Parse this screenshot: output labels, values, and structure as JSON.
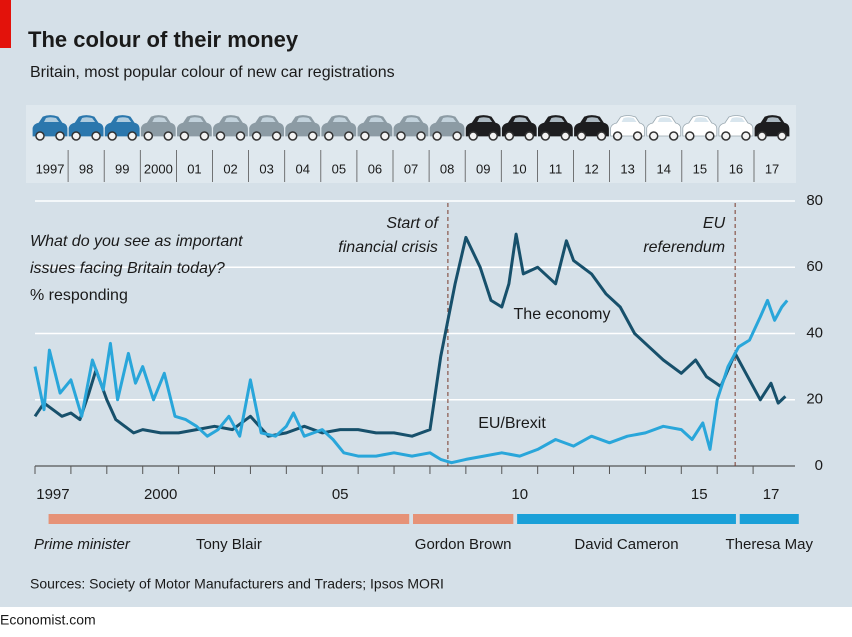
{
  "title": "The colour of their money",
  "subtitle": "Britain, most popular colour of new car registrations",
  "cars": {
    "years": [
      "1997",
      "98",
      "99",
      "2000",
      "01",
      "02",
      "03",
      "04",
      "05",
      "06",
      "07",
      "08",
      "09",
      "10",
      "11",
      "12",
      "13",
      "14",
      "15",
      "16",
      "17"
    ],
    "colors": [
      "#2b77ad",
      "#2b77ad",
      "#2b77ad",
      "#8c9ba4",
      "#8c9ba4",
      "#8c9ba4",
      "#8c9ba4",
      "#8c9ba4",
      "#8c9ba4",
      "#8c9ba4",
      "#8c9ba4",
      "#8c9ba4",
      "#1d1d1f",
      "#1d1d1f",
      "#1d1d1f",
      "#1d1d1f",
      "#ffffff",
      "#ffffff",
      "#ffffff",
      "#ffffff",
      "#1d1d1f"
    ]
  },
  "chart_data": {
    "type": "line",
    "question": [
      "What do you see as important",
      "issues facing Britain today?"
    ],
    "unit_label": "% responding",
    "xlim": [
      1997,
      2018
    ],
    "ylim": [
      0,
      80
    ],
    "yticks": [
      0,
      20,
      40,
      60,
      80
    ],
    "grid": true,
    "xticks": [
      {
        "value": 1997,
        "label": "1997"
      },
      {
        "value": 2000,
        "label": "2000"
      },
      {
        "value": 2005,
        "label": "05"
      },
      {
        "value": 2010,
        "label": "10"
      },
      {
        "value": 2015,
        "label": "15"
      },
      {
        "value": 2017,
        "label": "17"
      }
    ],
    "x_minor_ticks": [
      1997,
      1998,
      1999,
      2000,
      2001,
      2002,
      2003,
      2004,
      2005,
      2006,
      2007,
      2008,
      2009,
      2010,
      2011,
      2012,
      2013,
      2014,
      2015,
      2016,
      2017
    ],
    "series": [
      {
        "name": "The economy",
        "color": "#17506b",
        "x": [
          1997.0,
          1997.25,
          1997.5,
          1997.75,
          1998.0,
          1998.25,
          1998.5,
          1998.7,
          1999.0,
          1999.25,
          1999.5,
          1999.75,
          2000.0,
          2000.5,
          2001.0,
          2001.5,
          2002.0,
          2002.5,
          2003.0,
          2003.25,
          2003.5,
          2004.0,
          2004.5,
          2005.0,
          2005.5,
          2006.0,
          2006.5,
          2007.0,
          2007.5,
          2008.0,
          2008.3,
          2008.7,
          2009.0,
          2009.4,
          2009.7,
          2010.0,
          2010.2,
          2010.4,
          2010.6,
          2011.0,
          2011.5,
          2011.8,
          2012.0,
          2012.5,
          2012.9,
          2013.3,
          2013.7,
          2014.1,
          2014.5,
          2015.0,
          2015.4,
          2015.7,
          2016.1,
          2016.5,
          2016.8,
          2017.2,
          2017.5,
          2017.7,
          2017.9
        ],
        "values": [
          15,
          19,
          17,
          15,
          16,
          14,
          22,
          29,
          20,
          14,
          12,
          10,
          11,
          10,
          10,
          11,
          12,
          11,
          15,
          12,
          9,
          10,
          12,
          10,
          11,
          11,
          10,
          10,
          9,
          11,
          33,
          55,
          69,
          60,
          50,
          48,
          55,
          70,
          58,
          60,
          55,
          68,
          62,
          58,
          52,
          48,
          40,
          36,
          32,
          28,
          32,
          27,
          24,
          34,
          28,
          20,
          25,
          19,
          21
        ]
      },
      {
        "name": "EU/Brexit",
        "color": "#29a6da",
        "x": [
          1997.0,
          1997.25,
          1997.4,
          1997.7,
          1998.0,
          1998.3,
          1998.6,
          1998.9,
          1999.1,
          1999.3,
          1999.6,
          1999.8,
          2000.0,
          2000.3,
          2000.6,
          2000.9,
          2001.2,
          2001.5,
          2001.8,
          2002.1,
          2002.4,
          2002.7,
          2003.0,
          2003.3,
          2003.7,
          2004.0,
          2004.2,
          2004.5,
          2005.0,
          2005.3,
          2005.6,
          2006.0,
          2006.5,
          2007.0,
          2007.5,
          2008.0,
          2008.3,
          2008.6,
          2009.0,
          2009.5,
          2010.0,
          2010.5,
          2011.0,
          2011.5,
          2012.0,
          2012.5,
          2013.0,
          2013.5,
          2014.0,
          2014.5,
          2015.0,
          2015.3,
          2015.6,
          2015.8,
          2016.0,
          2016.3,
          2016.6,
          2016.9,
          2017.2,
          2017.4,
          2017.6,
          2017.8,
          2017.95
        ],
        "values": [
          30,
          17,
          35,
          22,
          26,
          15,
          32,
          23,
          37,
          20,
          34,
          25,
          30,
          20,
          28,
          15,
          14,
          12,
          9,
          11,
          15,
          9,
          26,
          10,
          9,
          12,
          16,
          9,
          11,
          8,
          4,
          3,
          3,
          4,
          3,
          4,
          2,
          1,
          2,
          3,
          4,
          3,
          5,
          8,
          6,
          9,
          7,
          9,
          10,
          12,
          11,
          8,
          13,
          5,
          20,
          30,
          36,
          38,
          45,
          50,
          44,
          48,
          50
        ]
      }
    ],
    "events": [
      {
        "lines": [
          "Start of",
          "financial crisis"
        ],
        "x": 2008.5
      },
      {
        "lines": [
          "EU",
          "referendum"
        ],
        "x": 2016.5
      }
    ],
    "prime_minister_label": "Prime minister",
    "prime_ministers": [
      {
        "name": "Tony Blair",
        "start": 1997.35,
        "end": 2007.45,
        "color": "#e69277"
      },
      {
        "name": "Gordon Brown",
        "start": 2007.5,
        "end": 2010.35,
        "color": "#e69277"
      },
      {
        "name": "David Cameron",
        "start": 2010.4,
        "end": 2016.55,
        "color": "#1aa0d8"
      },
      {
        "name": "Theresa May",
        "start": 2016.6,
        "end": 2018.3,
        "color": "#1aa0d8"
      }
    ]
  },
  "source": "Sources: Society of Motor Manufacturers and Traders; Ipsos MORI",
  "footer": "Economist.com"
}
